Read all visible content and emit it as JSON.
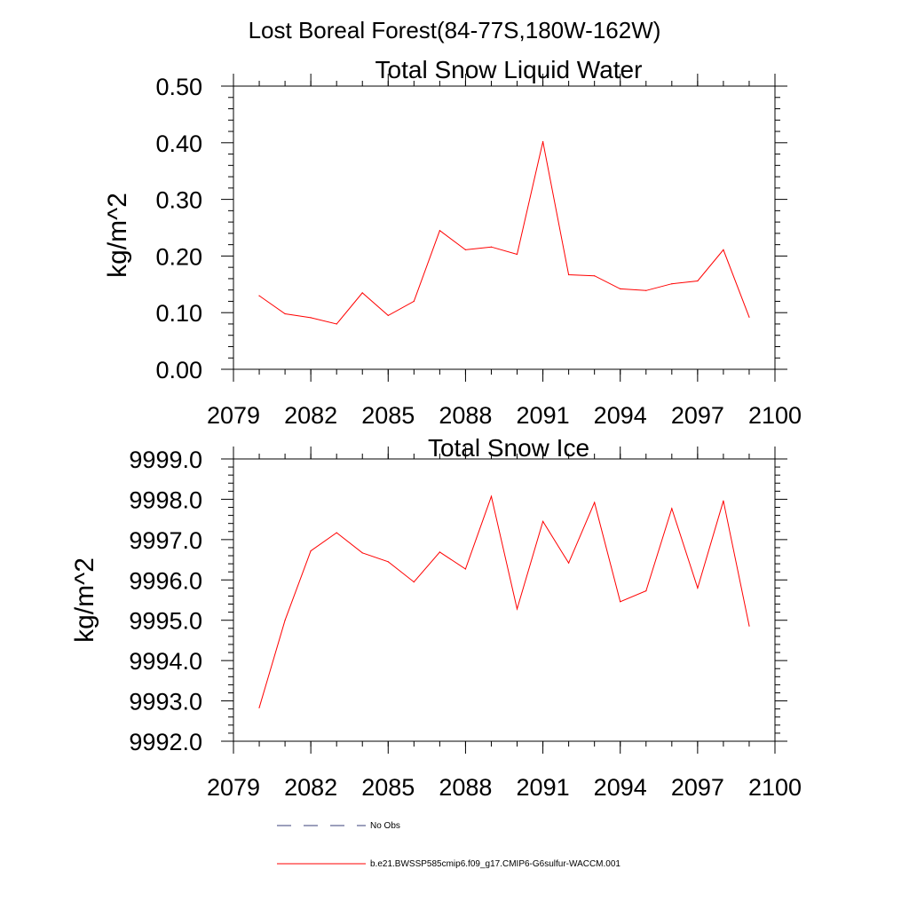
{
  "figure": {
    "suptitle": "Lost Boreal Forest(84-77S,180W-162W)"
  },
  "legend": {
    "entries": [
      {
        "label": "No Obs",
        "style": "dashed",
        "color": "#3a3f7a"
      },
      {
        "label": "b.e21.BWSSP585cmip6.f09_g17.CMIP6-G6sulfur-WACCM.001",
        "style": "solid",
        "color": "#ff0000"
      }
    ]
  },
  "chart_data": [
    {
      "type": "line",
      "title": "Total Snow Liquid Water",
      "xlabel": "",
      "ylabel": "kg/m^2",
      "xlim": [
        2079,
        2100
      ],
      "ylim": [
        0.0,
        0.5
      ],
      "xticks": [
        2079,
        2082,
        2085,
        2088,
        2091,
        2094,
        2097,
        2100
      ],
      "yticks": [
        0.0,
        0.1,
        0.2,
        0.3,
        0.4,
        0.5
      ],
      "ytick_labels": [
        "0.00",
        "0.10",
        "0.20",
        "0.30",
        "0.40",
        "0.50"
      ],
      "grid": false,
      "series": [
        {
          "name": "b.e21.BWSSP585cmip6.f09_g17.CMIP6-G6sulfur-WACCM.001",
          "color": "#ff0000",
          "x": [
            2080,
            2081,
            2082,
            2083,
            2084,
            2085,
            2086,
            2087,
            2088,
            2089,
            2090,
            2091,
            2092,
            2093,
            2094,
            2095,
            2096,
            2097,
            2098,
            2099
          ],
          "y": [
            0.13,
            0.098,
            0.091,
            0.08,
            0.135,
            0.095,
            0.12,
            0.245,
            0.211,
            0.216,
            0.203,
            0.402,
            0.167,
            0.165,
            0.142,
            0.139,
            0.151,
            0.156,
            0.211,
            0.092
          ]
        }
      ]
    },
    {
      "type": "line",
      "title": "Total Snow Ice",
      "xlabel": "",
      "ylabel": "kg/m^2",
      "xlim": [
        2079,
        2100
      ],
      "ylim": [
        9992.0,
        9999.0
      ],
      "xticks": [
        2079,
        2082,
        2085,
        2088,
        2091,
        2094,
        2097,
        2100
      ],
      "yticks": [
        9992,
        9993,
        9994,
        9995,
        9996,
        9997,
        9998,
        9999
      ],
      "ytick_labels": [
        "9992.0",
        "9993.0",
        "9994.0",
        "9995.0",
        "9996.0",
        "9997.0",
        "9998.0",
        "9999.0"
      ],
      "grid": false,
      "series": [
        {
          "name": "b.e21.BWSSP585cmip6.f09_g17.CMIP6-G6sulfur-WACCM.001",
          "color": "#ff0000",
          "x": [
            2080,
            2081,
            2082,
            2083,
            2084,
            2085,
            2086,
            2087,
            2088,
            2089,
            2090,
            2091,
            2092,
            2093,
            2094,
            2095,
            2096,
            2097,
            2098,
            2099
          ],
          "y": [
            9992.83,
            9995.0,
            9996.72,
            9997.17,
            9996.67,
            9996.45,
            9995.95,
            9996.69,
            9996.27,
            9998.07,
            9995.28,
            9997.45,
            9996.42,
            9997.92,
            9995.46,
            9995.73,
            9997.77,
            9995.8,
            9997.96,
            9994.86
          ]
        }
      ]
    }
  ]
}
